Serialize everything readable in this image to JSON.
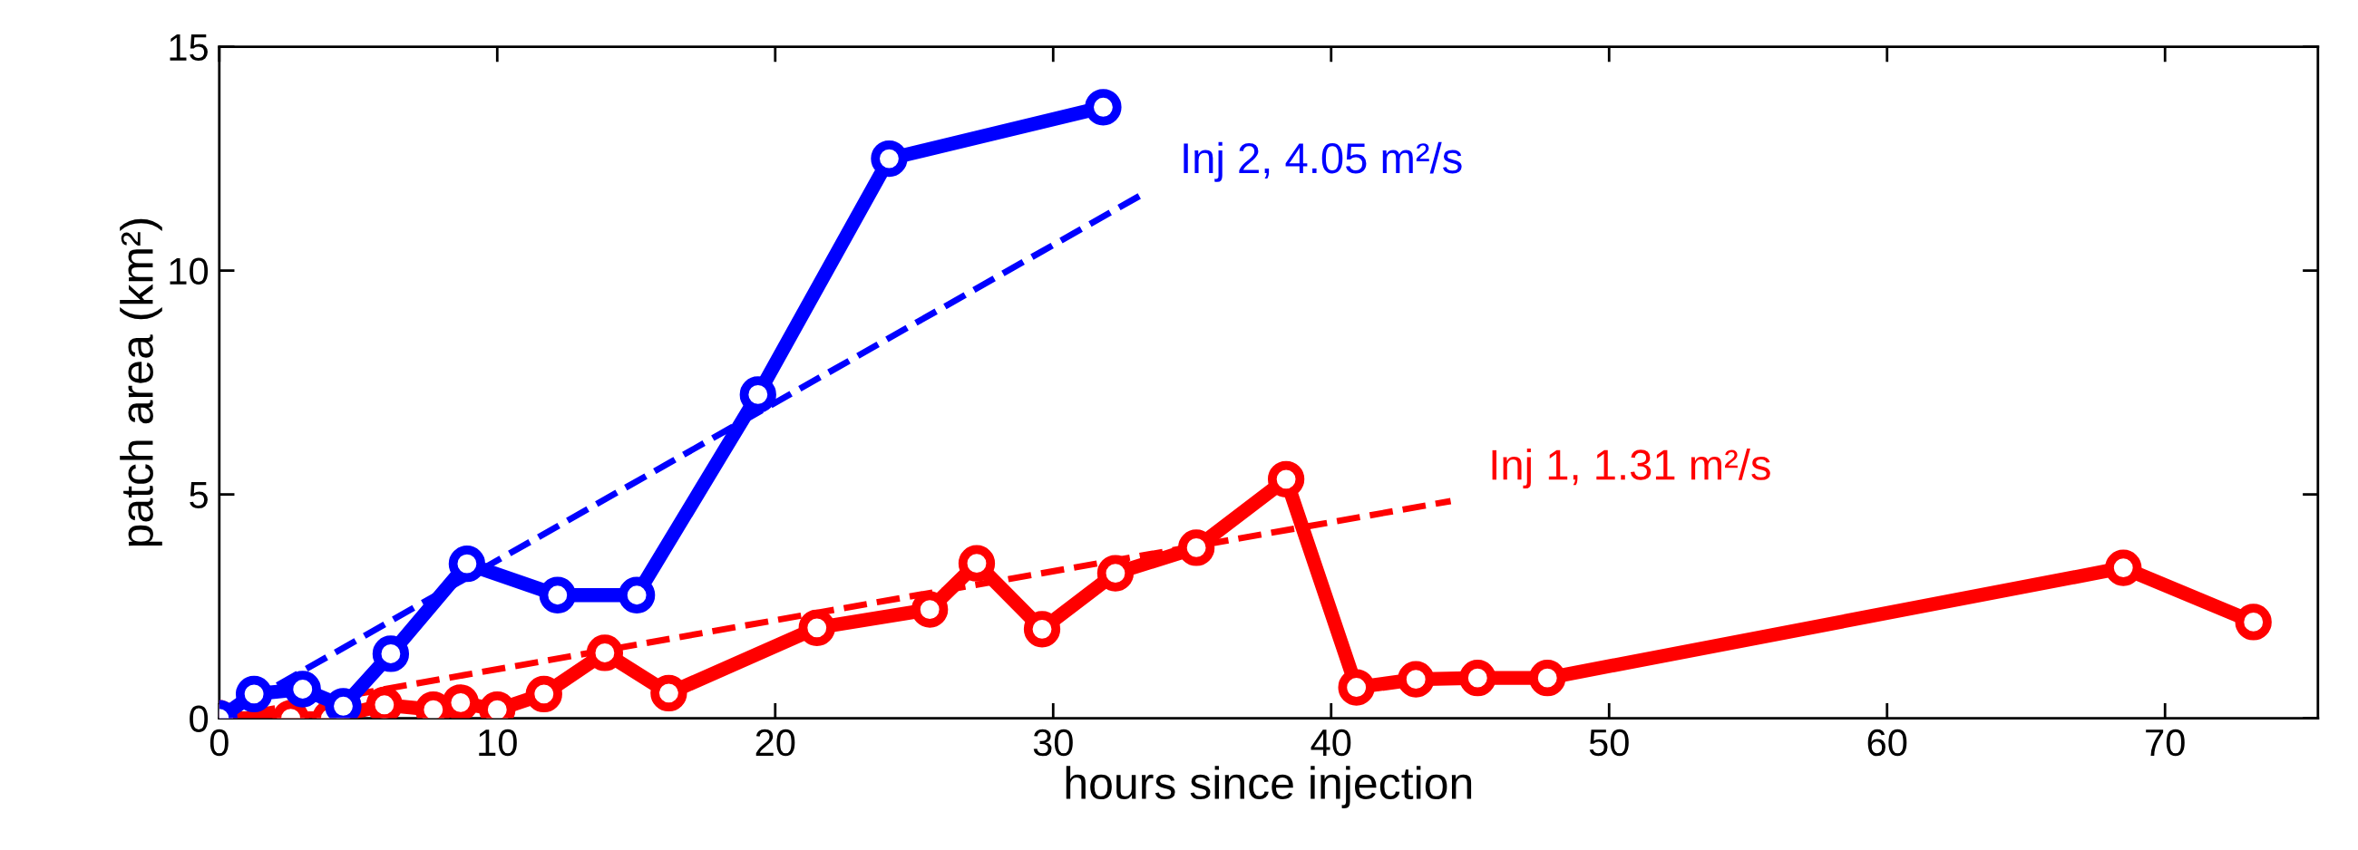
{
  "chart_data": {
    "type": "line",
    "xlabel": "hours since injection",
    "ylabel": "patch area (km²)",
    "xlim": [
      0,
      75.5
    ],
    "ylim": [
      0,
      15
    ],
    "xticks": [
      0,
      10,
      20,
      30,
      40,
      50,
      60,
      70
    ],
    "yticks": [
      0,
      5,
      10,
      15
    ],
    "grid": false,
    "marker": "circle",
    "line_style": "solid",
    "series": [
      {
        "color": "#ff0000",
        "x": [
          0,
          2.57,
          4.0,
          5.94,
          7.7,
          8.68,
          10.0,
          11.68,
          13.87,
          16.17,
          21.5,
          25.56,
          27.25,
          29.6,
          32.24,
          35.15,
          38.38,
          40.91,
          43.05,
          45.27,
          47.78,
          68.5,
          73.18
        ],
        "values": [
          0,
          0,
          0,
          0.3,
          0.19,
          0.35,
          0.19,
          0.54,
          1.46,
          0.56,
          2.02,
          2.43,
          3.46,
          1.99,
          3.24,
          3.81,
          5.34,
          0.69,
          0.87,
          0.9,
          0.9,
          3.36,
          2.15
        ]
      },
      {
        "color": "#0000ff",
        "x": [
          0,
          1.25,
          3.0,
          4.46,
          6.17,
          8.91,
          12.17,
          15.02,
          19.38,
          24.1,
          31.8
        ],
        "values": [
          0,
          0.54,
          0.65,
          0.27,
          1.44,
          3.45,
          2.75,
          2.75,
          7.23,
          12.5,
          13.65
        ]
      },
      {
        "name": "Inj 2, 4.05 m²/s",
        "color": "#0000ff",
        "line_style": "dashed",
        "marker": "none",
        "x": [
          0,
          33.2
        ],
        "values": [
          0,
          11.7
        ]
      },
      {
        "name": "Inj 1, 1.31 m²/s",
        "color": "#ff0000",
        "line_style": "dashed",
        "marker": "none",
        "x": [
          0,
          44.3
        ],
        "values": [
          0,
          4.85
        ]
      }
    ]
  }
}
